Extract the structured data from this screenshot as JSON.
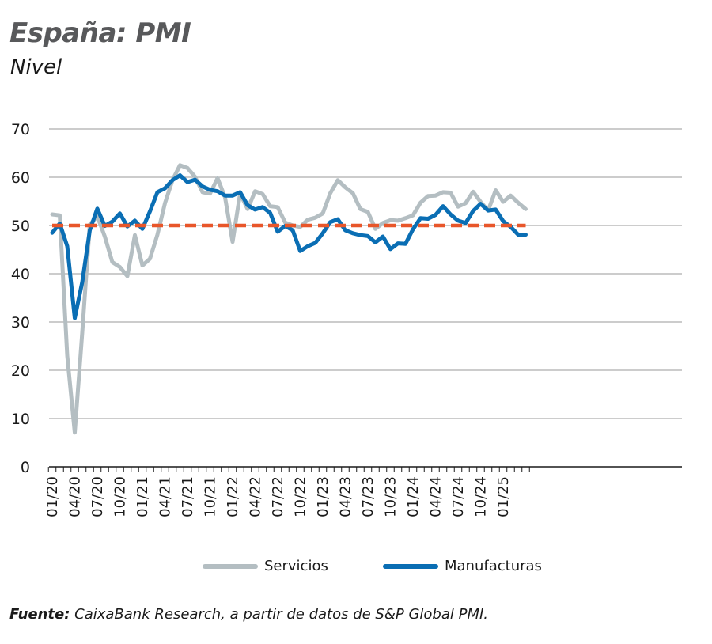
{
  "chart_data": {
    "type": "line",
    "title": "España: PMI",
    "subtitle": "Nivel",
    "ylim": [
      0,
      70
    ],
    "yticks": [
      0,
      10,
      20,
      30,
      40,
      50,
      60,
      70
    ],
    "grid": true,
    "legend_position": "bottom-center",
    "x_tick_labels": [
      "01/20",
      "04/20",
      "07/20",
      "10/20",
      "01/21",
      "04/21",
      "07/21",
      "10/21",
      "01/22",
      "04/22",
      "07/22",
      "10/22",
      "01/23",
      "04/23",
      "07/23",
      "10/23",
      "01/24",
      "04/24",
      "07/24",
      "10/24",
      "01/25"
    ],
    "x": [
      "01/20",
      "02/20",
      "03/20",
      "04/20",
      "05/20",
      "06/20",
      "07/20",
      "08/20",
      "09/20",
      "10/20",
      "11/20",
      "12/20",
      "01/21",
      "02/21",
      "03/21",
      "04/21",
      "05/21",
      "06/21",
      "07/21",
      "08/21",
      "09/21",
      "10/21",
      "11/21",
      "12/21",
      "01/22",
      "02/22",
      "03/22",
      "04/22",
      "05/22",
      "06/22",
      "07/22",
      "08/22",
      "09/22",
      "10/22",
      "11/22",
      "12/22",
      "01/23",
      "02/23",
      "03/23",
      "04/23",
      "05/23",
      "06/23",
      "07/23",
      "08/23",
      "09/23",
      "10/23",
      "11/23",
      "12/23",
      "01/24",
      "02/24",
      "03/24",
      "04/24",
      "05/24",
      "06/24",
      "07/24",
      "08/24",
      "09/24",
      "10/24",
      "11/24",
      "12/24",
      "01/25",
      "02/25",
      "03/25",
      "04/25"
    ],
    "reference_line": {
      "value": 50,
      "color": "#e8562a",
      "style": "dashed"
    },
    "series": [
      {
        "name": "Servicios",
        "color": "#b4bec2",
        "values": [
          52.3,
          52.1,
          23.0,
          7.1,
          27.9,
          50.2,
          51.9,
          47.7,
          42.4,
          41.4,
          39.5,
          48.0,
          41.7,
          43.1,
          48.1,
          54.6,
          59.4,
          62.5,
          61.9,
          60.1,
          56.9,
          56.6,
          59.8,
          55.8,
          46.6,
          56.6,
          53.4,
          57.1,
          56.5,
          54.0,
          53.8,
          50.6,
          50.0,
          49.7,
          51.2,
          51.6,
          52.5,
          56.7,
          59.4,
          57.9,
          56.7,
          53.4,
          52.8,
          49.3,
          50.5,
          51.1,
          51.0,
          51.5,
          52.1,
          54.7,
          56.1,
          56.2,
          56.9,
          56.8,
          53.9,
          54.6,
          57.0,
          54.9,
          53.1,
          57.3,
          54.9,
          56.2,
          54.7,
          53.4
        ]
      },
      {
        "name": "Manufacturas",
        "color": "#0a6eb4",
        "values": [
          48.5,
          50.4,
          45.7,
          30.8,
          38.3,
          49.0,
          53.5,
          49.9,
          50.8,
          52.5,
          49.8,
          51.0,
          49.3,
          52.9,
          56.9,
          57.7,
          59.4,
          60.4,
          59.0,
          59.5,
          58.1,
          57.4,
          57.1,
          56.2,
          56.2,
          56.9,
          54.2,
          53.3,
          53.8,
          52.6,
          48.7,
          49.9,
          49.0,
          44.7,
          45.7,
          46.4,
          48.4,
          50.7,
          51.3,
          49.0,
          48.4,
          48.0,
          47.8,
          46.5,
          47.7,
          45.1,
          46.3,
          46.2,
          49.2,
          51.5,
          51.4,
          52.2,
          54.0,
          52.3,
          51.0,
          50.5,
          53.0,
          54.5,
          53.1,
          53.3,
          50.9,
          49.7,
          48.1,
          48.1
        ]
      }
    ]
  },
  "legend": {
    "items": [
      {
        "label": "Servicios",
        "color": "#b4bec2"
      },
      {
        "label": "Manufacturas",
        "color": "#0a6eb4"
      }
    ]
  },
  "source": {
    "label": "Fuente:",
    "text": " CaixaBank Research, a partir de datos de S&P Global PMI."
  }
}
